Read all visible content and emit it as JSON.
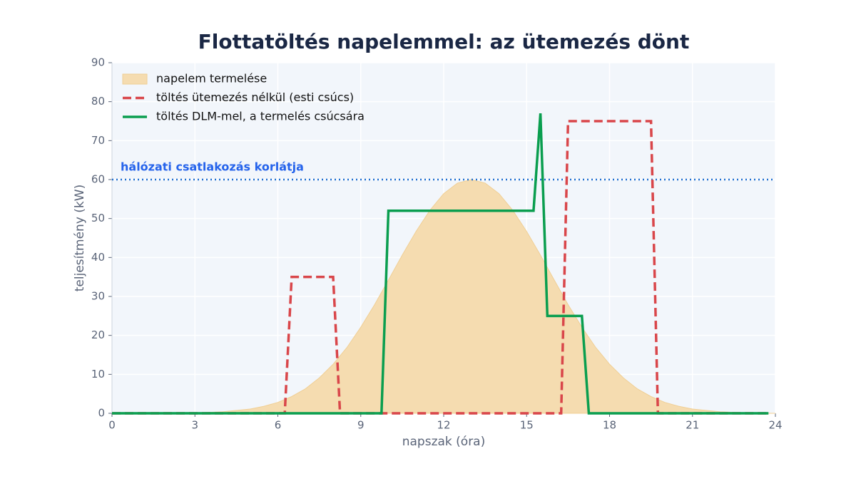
{
  "chart_data": {
    "type": "line",
    "title": "Flottatöltés napelemmel: az ütemezés dönt",
    "x_label": "napszak (óra)",
    "y_label": "teljesítmény (kW)",
    "xlim": [
      0,
      24
    ],
    "ylim": [
      0,
      90
    ],
    "xticks": [
      0,
      3,
      6,
      9,
      12,
      15,
      18,
      21,
      24
    ],
    "yticks": [
      0,
      10,
      20,
      30,
      40,
      50,
      60,
      70,
      80,
      90
    ],
    "grid": true,
    "legend_position": "upper-left",
    "reference_line": {
      "value": 60,
      "label": "hálózati csatlakozás korlátja",
      "color": "#1f6fd0"
    },
    "series": [
      {
        "name": "napelem termelése",
        "kind": "area",
        "color": "#f5dcb0",
        "x": [
          0,
          1,
          2,
          3,
          4,
          5,
          5.5,
          6,
          6.5,
          7,
          7.5,
          8,
          8.5,
          9,
          9.5,
          10,
          10.5,
          11,
          11.5,
          12,
          12.5,
          13,
          13.5,
          14,
          14.5,
          15,
          15.5,
          16,
          16.5,
          17,
          17.5,
          18,
          18.5,
          19,
          19.5,
          20,
          20.5,
          21,
          22,
          23,
          24
        ],
        "values": [
          0,
          0,
          0,
          0.1,
          0.4,
          1.1,
          1.8,
          2.8,
          4.3,
          6.3,
          9.1,
          12.6,
          16.9,
          22.1,
          27.9,
          34.2,
          40.6,
          46.7,
          52.1,
          56.4,
          59.1,
          60,
          59.1,
          56.4,
          52.1,
          46.7,
          40.6,
          34.2,
          27.9,
          22.1,
          16.9,
          12.6,
          9.1,
          6.3,
          4.3,
          2.8,
          1.8,
          1.1,
          0.4,
          0.1,
          0
        ]
      },
      {
        "name": "töltés ütemezés nélkül (esti csúcs)",
        "kind": "dashed",
        "color": "#d9464a",
        "x": [
          0,
          6.25,
          6.5,
          8,
          8.25,
          16.25,
          16.5,
          19.5,
          19.75,
          23.75
        ],
        "values": [
          0,
          0,
          35,
          35,
          0,
          0,
          75,
          75,
          0,
          0
        ]
      },
      {
        "name": "töltés DLM-mel, a termelés csúcsára",
        "kind": "solid",
        "color": "#0a9e4f",
        "x": [
          0,
          9.75,
          10,
          15.25,
          15.5,
          15.75,
          17,
          17.25,
          23.75
        ],
        "values": [
          0,
          0,
          52,
          52,
          77,
          25,
          25,
          0,
          0
        ]
      }
    ]
  }
}
